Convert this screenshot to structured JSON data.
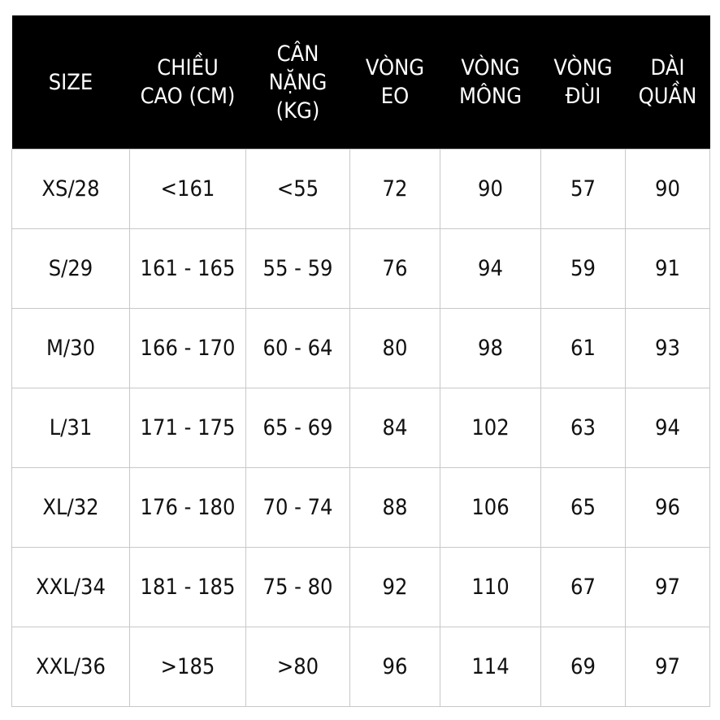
{
  "table": {
    "headers": [
      [
        "SIZE"
      ],
      [
        "CHIỀU",
        "CAO (CM)"
      ],
      [
        "CÂN",
        "NẶNG",
        "(KG)"
      ],
      [
        "VÒNG",
        "EO"
      ],
      [
        "VÒNG",
        "MÔNG"
      ],
      [
        "VÒNG",
        "ĐÙI"
      ],
      [
        "DÀI",
        "QUẦN"
      ]
    ],
    "rows": [
      [
        "XS/28",
        "<161",
        "<55",
        "72",
        "90",
        "57",
        "90"
      ],
      [
        "S/29",
        "161 - 165",
        "55 - 59",
        "76",
        "94",
        "59",
        "91"
      ],
      [
        "M/30",
        "166 - 170",
        "60 - 64",
        "80",
        "98",
        "61",
        "93"
      ],
      [
        "L/31",
        "171 - 175",
        "65 - 69",
        "84",
        "102",
        "63",
        "94"
      ],
      [
        "XL/32",
        "176 - 180",
        "70 - 74",
        "88",
        "106",
        "65",
        "96"
      ],
      [
        "XXL/34",
        "181 - 185",
        "75 - 80",
        "92",
        "110",
        "67",
        "97"
      ],
      [
        "XXL/36",
        ">185",
        ">80",
        "96",
        "114",
        "69",
        "97"
      ]
    ]
  },
  "colors": {
    "header_background": "#000000",
    "header_text": "#ffffff",
    "grid_line": "#c8c8c8",
    "cell_text": "#111111"
  }
}
